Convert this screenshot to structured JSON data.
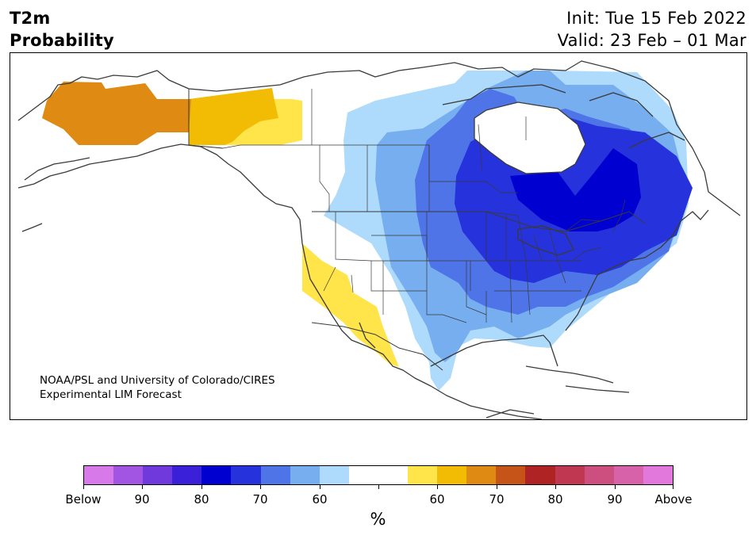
{
  "header": {
    "title_line1": "T2m",
    "title_line2": "Probability",
    "init": "Init: Tue 15 Feb 2022",
    "valid": "Valid: 23 Feb – 01 Mar"
  },
  "credit": {
    "line1": "NOAA/PSL and University of Colorado/CIRES",
    "line2": "Experimental LIM Forecast"
  },
  "colorbar": {
    "unit": "%",
    "colors": [
      "#d779e9",
      "#a255e2",
      "#6f39dc",
      "#3b20d9",
      "#0000d0",
      "#2632dc",
      "#4f74e8",
      "#76aeef",
      "#aedbfb",
      "#ffffff",
      "#ffffff",
      "#ffe44a",
      "#f2bb04",
      "#df8a12",
      "#c65418",
      "#b02324",
      "#c03752",
      "#cc4f7f",
      "#d762a9",
      "#e378dc"
    ],
    "tick_labels": [
      "Below",
      "90",
      "80",
      "70",
      "60",
      "",
      "60",
      "70",
      "80",
      "90",
      "Above"
    ]
  },
  "map": {
    "region": "North America",
    "features": [
      "coastlines",
      "national borders",
      "US state and Canadian province borders"
    ],
    "probability_areas": [
      {
        "category": "Above",
        "value": "65-70",
        "color": "#df8a12",
        "area": "Alaska"
      },
      {
        "category": "Above",
        "value": "60-65",
        "color": "#f2bb04",
        "area": "Yukon"
      },
      {
        "category": "Above",
        "value": "55-60",
        "color": "#ffe44a",
        "area": "Yukon / NW British Columbia"
      },
      {
        "category": "Above",
        "value": "55-65",
        "color": "#ffe44a",
        "area": "California / Arizona / NW Mexico"
      },
      {
        "category": "Below",
        "value": "55-60",
        "color": "#aedbfb",
        "area": "Canadian Prairies to southern Plains and Mexico"
      },
      {
        "category": "Below",
        "value": "60-65",
        "color": "#76aeef",
        "area": "Central Canada to Texas"
      },
      {
        "category": "Below",
        "value": "65-70",
        "color": "#4f74e8",
        "area": "Hudson Bay to Mississippi Valley"
      },
      {
        "category": "Below",
        "value": "70-75",
        "color": "#2632dc",
        "area": "Ontario, Quebec, Great Lakes, Northeast US"
      },
      {
        "category": "Below",
        "value": "75-80",
        "color": "#0000d0",
        "area": "Northern Ontario and Quebec"
      }
    ]
  }
}
